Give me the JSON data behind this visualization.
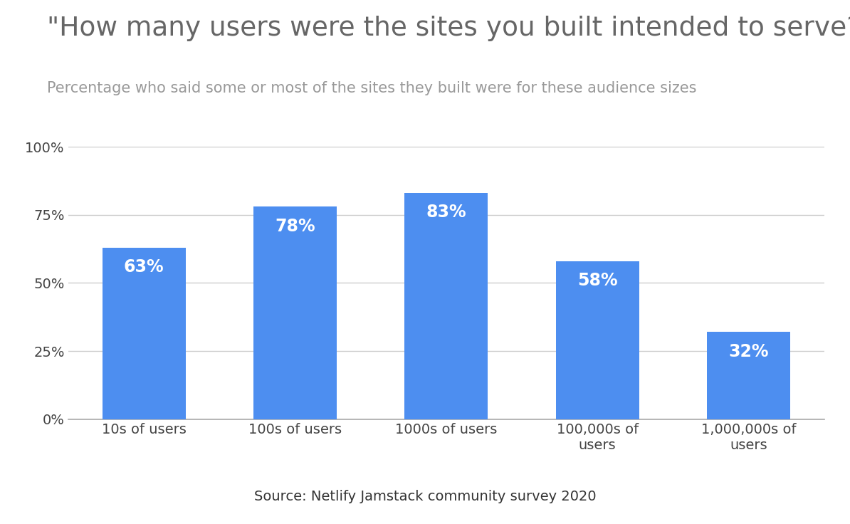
{
  "title": "\"How many users were the sites you built intended to serve?\"",
  "subtitle": "Percentage who said some or most of the sites they built were for these audience sizes",
  "categories": [
    "10s of users",
    "100s of users",
    "1000s of users",
    "100,000s of\nusers",
    "1,000,000s of\nusers"
  ],
  "values": [
    63,
    78,
    83,
    58,
    32
  ],
  "bar_color": "#4d8ef0",
  "label_color": "#ffffff",
  "title_color": "#666666",
  "subtitle_color": "#999999",
  "source_text": "Source: Netlify Jamstack community survey 2020",
  "ylim": [
    0,
    100
  ],
  "yticks": [
    0,
    25,
    50,
    75,
    100
  ],
  "ytick_labels": [
    "0%",
    "25%",
    "50%",
    "75%",
    "100%"
  ],
  "background_color": "#ffffff",
  "grid_color": "#cccccc",
  "title_fontsize": 27,
  "subtitle_fontsize": 15,
  "bar_label_fontsize": 17,
  "tick_fontsize": 14,
  "source_fontsize": 14
}
